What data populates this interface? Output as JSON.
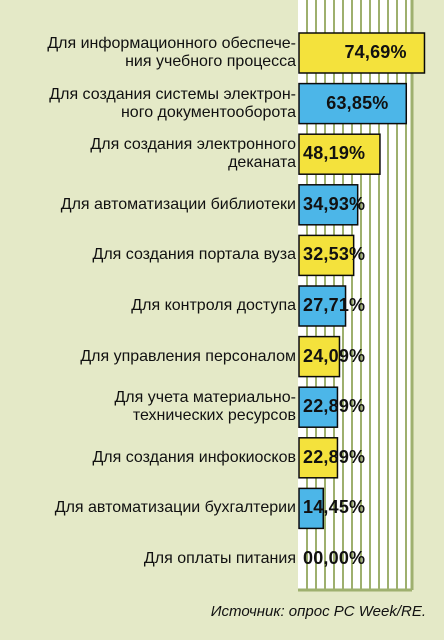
{
  "source_note": "Источник: опрос PC Week/RE.",
  "colors": {
    "background": "#e4e9c7",
    "panel": "#ffffff",
    "grid": "#9eb06e",
    "yellow": "#f4e23c",
    "blue": "#4cb6e8",
    "edge": "#0a0a0a"
  },
  "chart_data": {
    "type": "bar",
    "orientation": "horizontal",
    "categories": [
      "Для информационного обеспече-\nния учебного процесса",
      "Для создания системы электрон-\nного документооборота",
      "Для создания электронного\nдеканата",
      "Для автоматизации библиотеки",
      "Для создания портала вуза",
      "Для контроля доступа",
      "Для управления персоналом",
      "Для учета материально-\nтехнических ресурсов",
      "Для создания инфокиосков",
      "Для автоматизации бухгалтерии",
      "Для оплаты питания"
    ],
    "values": [
      74.69,
      63.85,
      48.19,
      34.93,
      32.53,
      27.71,
      24.09,
      22.89,
      22.89,
      14.45,
      0.0
    ],
    "value_labels": [
      "74,69%",
      "63,85%",
      "48,19%",
      "34,93%",
      "32,53%",
      "27,71%",
      "24,09%",
      "22,89%",
      "22,89%",
      "14,45%",
      "00,00%"
    ],
    "bar_colors": [
      "yellow",
      "blue",
      "yellow",
      "blue",
      "yellow",
      "blue",
      "yellow",
      "blue",
      "yellow",
      "blue",
      "yellow"
    ],
    "xlim": [
      0,
      100
    ],
    "grid": true
  }
}
